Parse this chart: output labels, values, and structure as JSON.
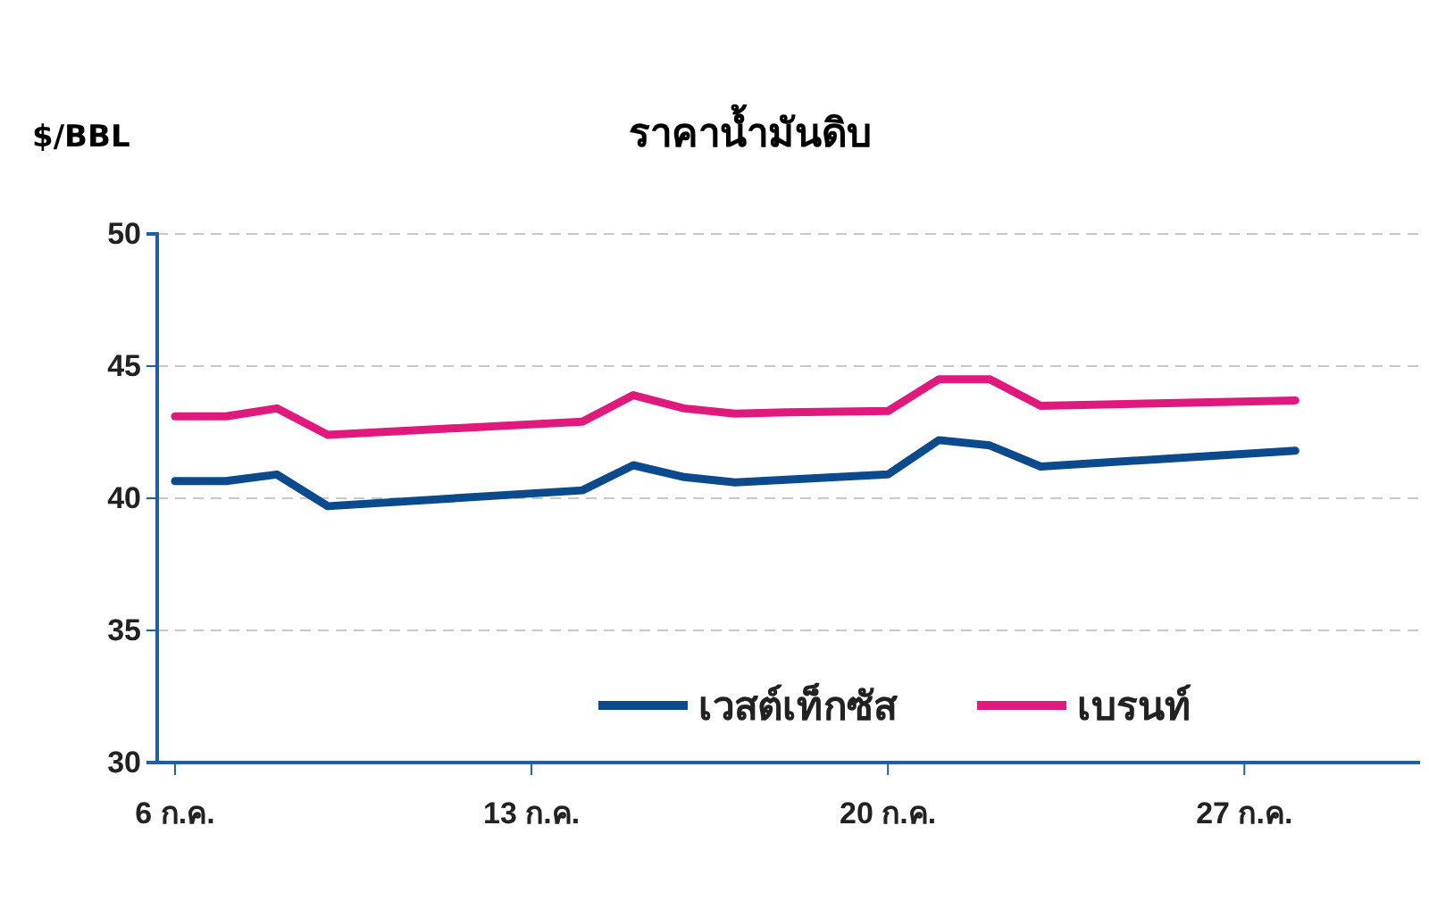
{
  "chart_data": {
    "type": "line",
    "title": "ราคาน้ำมันดิบ",
    "ylabel": "$/BBL",
    "x": [
      6,
      7,
      8,
      9,
      14,
      15,
      16,
      17,
      18,
      20,
      21,
      22,
      23,
      28
    ],
    "series": [
      {
        "name": "เวสต์เท็กซัส",
        "color": "#0b4a8c",
        "values": [
          40.65,
          40.65,
          40.9,
          39.7,
          40.3,
          41.25,
          40.8,
          40.6,
          40.7,
          40.9,
          42.2,
          42.0,
          41.2,
          41.8
        ]
      },
      {
        "name": "เบรนท์",
        "color": "#e0197d",
        "values": [
          43.1,
          43.1,
          43.4,
          42.4,
          42.9,
          43.9,
          43.4,
          43.2,
          43.25,
          43.3,
          44.5,
          44.5,
          43.5,
          43.7
        ]
      }
    ],
    "xlim": [
      5.65,
      30.45
    ],
    "xticks": [
      {
        "value": 6,
        "label": "6 ก.ค."
      },
      {
        "value": 13,
        "label": "13 ก.ค."
      },
      {
        "value": 20,
        "label": "20 ก.ค."
      },
      {
        "value": 27,
        "label": "27 ก.ค."
      }
    ],
    "ylim": [
      30,
      50
    ],
    "yticks": [
      30,
      35,
      40,
      45,
      50
    ],
    "grid": "y",
    "legend": "bottom right",
    "marker": "none",
    "line_style": "solid"
  }
}
